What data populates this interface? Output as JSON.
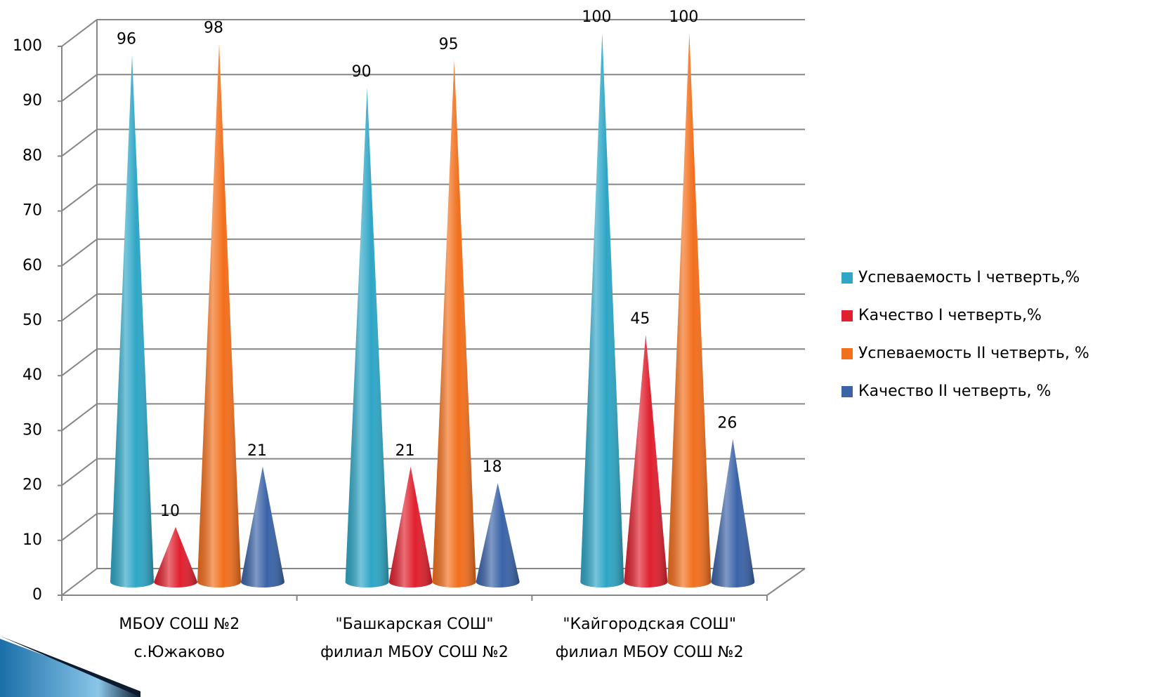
{
  "chart_data": {
    "type": "bar",
    "categories": [
      [
        "МБОУ СОШ №2",
        "с.Южаково"
      ],
      [
        "\"Башкарская СОШ\"",
        "филиал МБОУ СОШ №2"
      ],
      [
        "\"Кайгородская СОШ\"",
        "филиал МБОУ СОШ №2"
      ]
    ],
    "series": [
      {
        "name": "Успеваемость I четверть,%",
        "color": "#2ea6c6",
        "values": [
          96,
          90,
          100
        ]
      },
      {
        "name": "Качество I четверть,%",
        "color": "#e0202e",
        "values": [
          10,
          21,
          45
        ]
      },
      {
        "name": "Успеваемость II четверть, %",
        "color": "#f26f1c",
        "values": [
          98,
          95,
          100
        ]
      },
      {
        "name": "Качество II четверть, %",
        "color": "#3a63a8",
        "values": [
          21,
          18,
          26
        ]
      }
    ],
    "ylim": [
      0,
      100
    ],
    "yticks": [
      0,
      10,
      20,
      30,
      40,
      50,
      60,
      70,
      80,
      90,
      100
    ],
    "grid": true,
    "legend": "right"
  }
}
